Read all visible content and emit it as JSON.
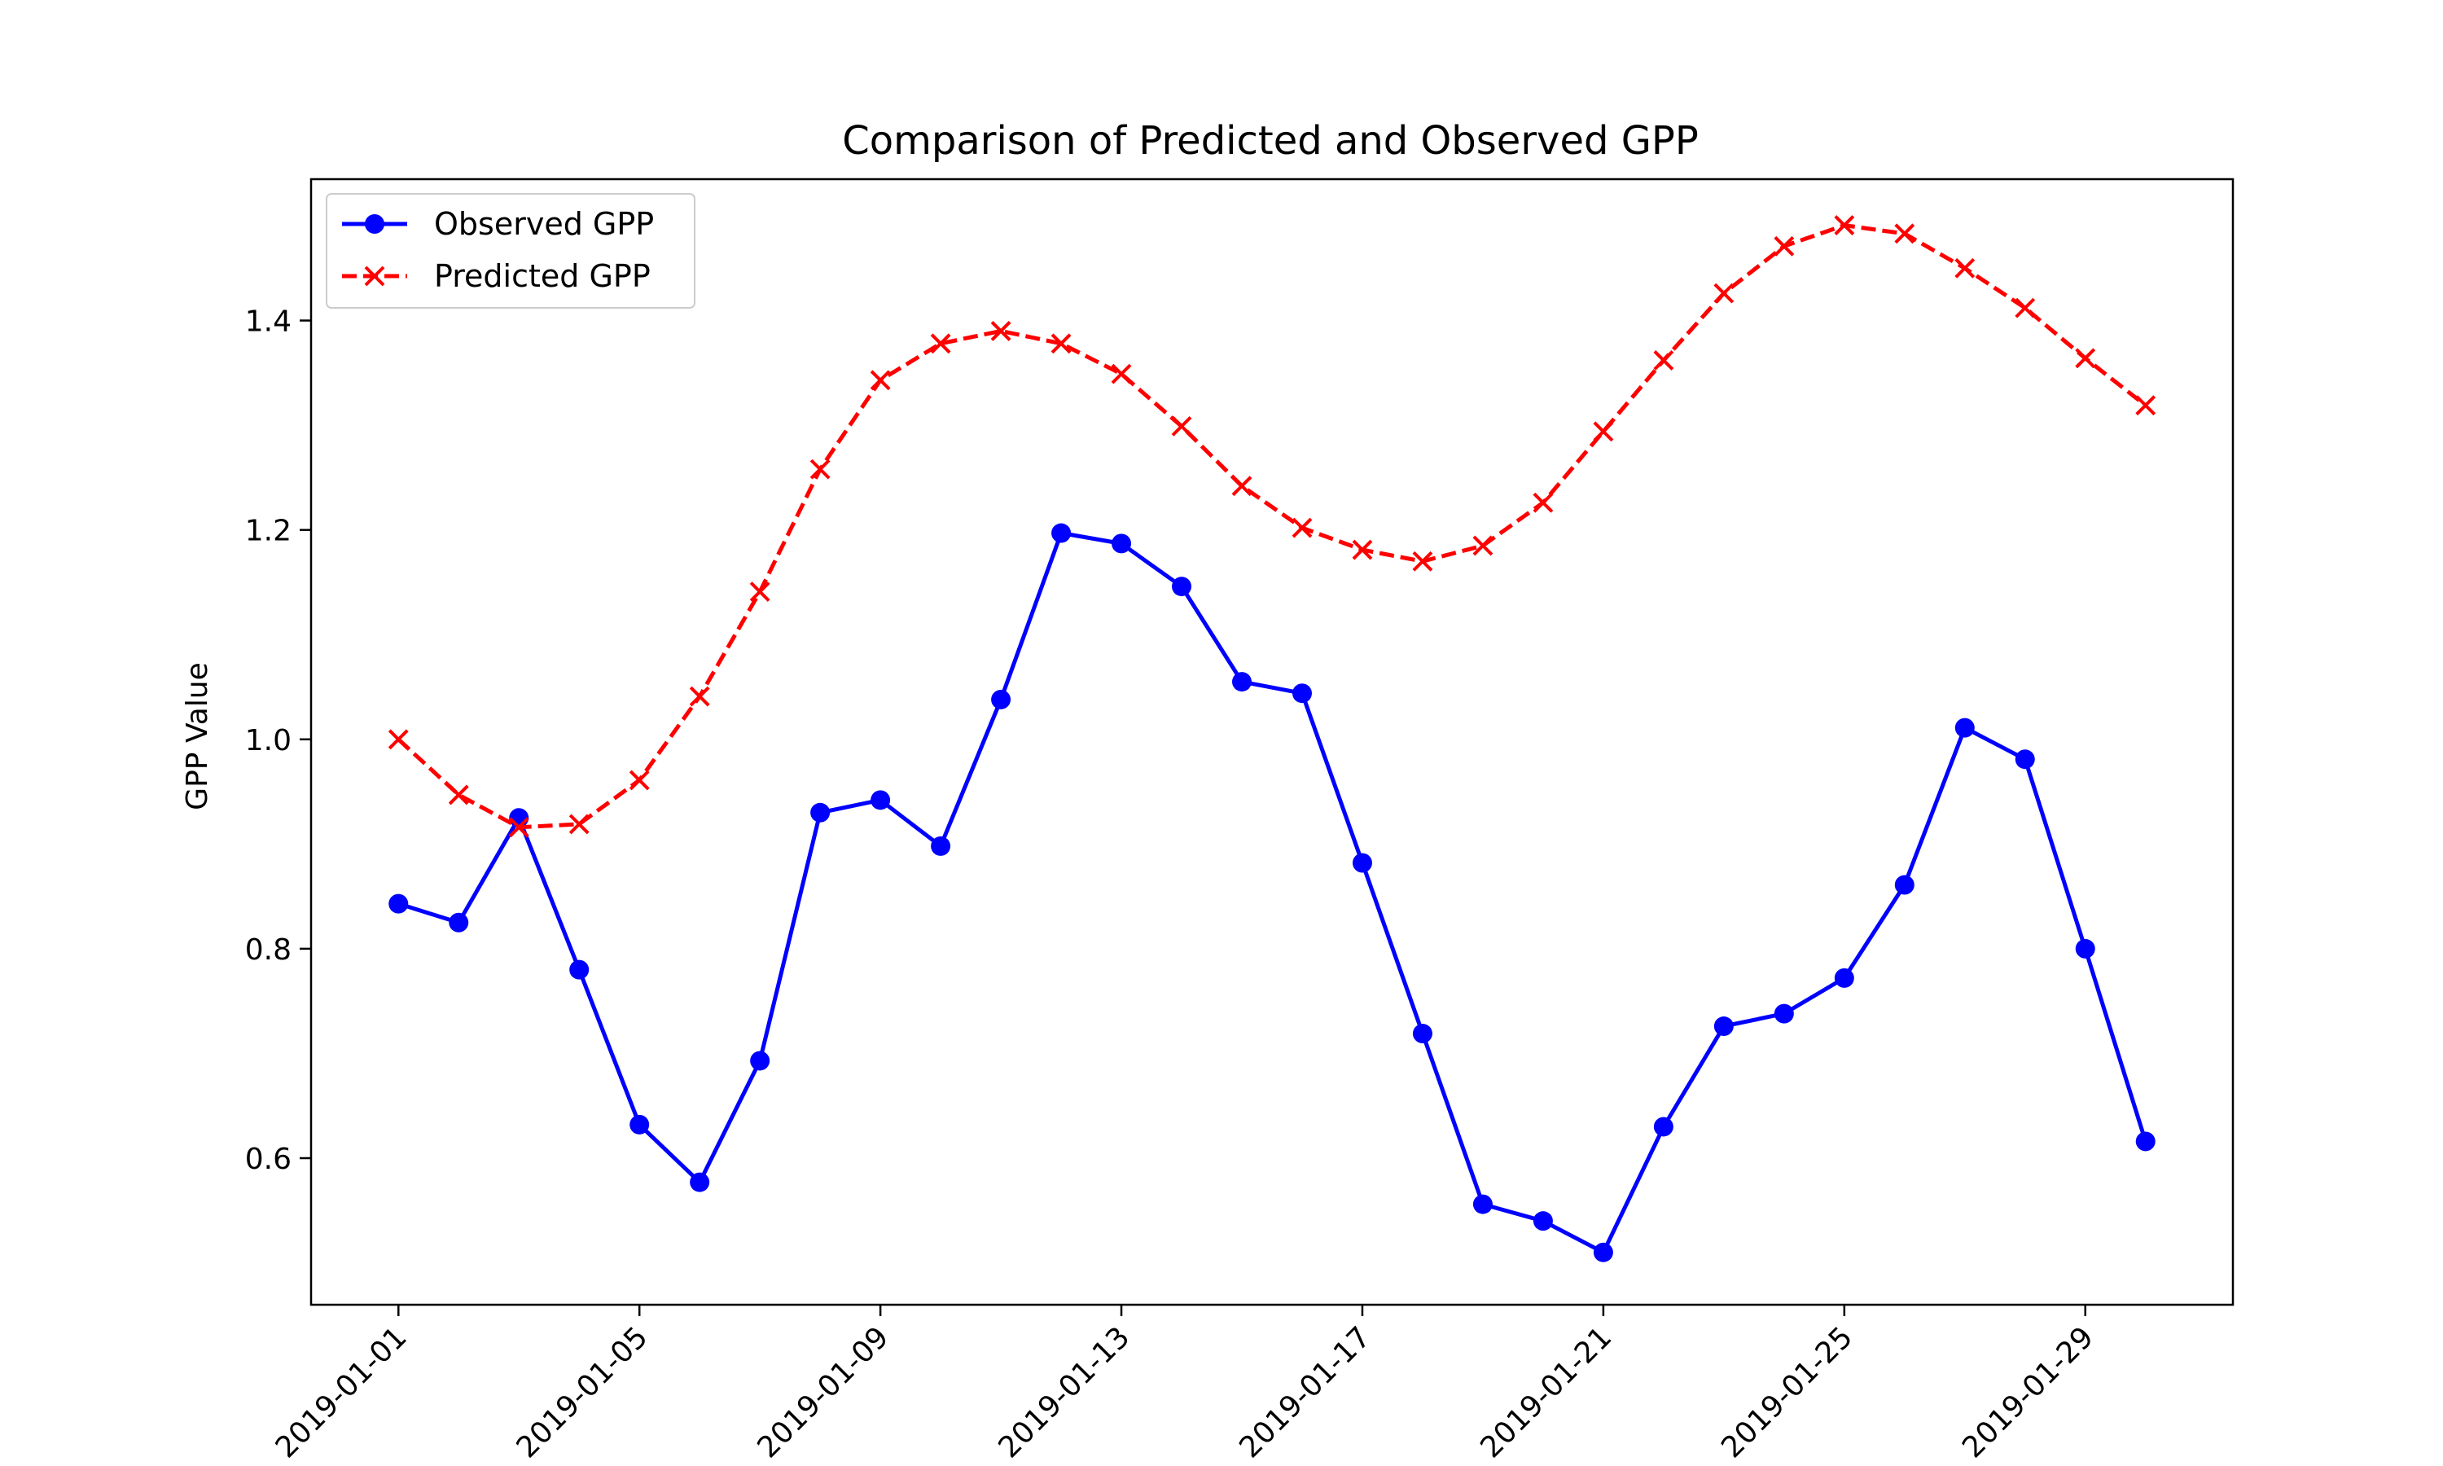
{
  "chart_data": {
    "type": "line",
    "title": "Comparison of Predicted and Observed GPP",
    "xlabel": "",
    "ylabel": "GPP Value",
    "x": [
      "2019-01-01",
      "2019-01-02",
      "2019-01-03",
      "2019-01-04",
      "2019-01-05",
      "2019-01-06",
      "2019-01-07",
      "2019-01-08",
      "2019-01-09",
      "2019-01-10",
      "2019-01-11",
      "2019-01-12",
      "2019-01-13",
      "2019-01-14",
      "2019-01-15",
      "2019-01-16",
      "2019-01-17",
      "2019-01-18",
      "2019-01-19",
      "2019-01-20",
      "2019-01-21",
      "2019-01-22",
      "2019-01-23",
      "2019-01-24",
      "2019-01-25",
      "2019-01-26",
      "2019-01-27",
      "2019-01-28",
      "2019-01-29",
      "2019-01-30"
    ],
    "x_ticks": [
      "2019-01-01",
      "2019-01-05",
      "2019-01-09",
      "2019-01-13",
      "2019-01-17",
      "2019-01-21",
      "2019-01-25",
      "2019-01-29"
    ],
    "y_ticks": [
      "0.6",
      "0.8",
      "1.0",
      "1.2",
      "1.4"
    ],
    "ylim": [
      0.46,
      1.535
    ],
    "xlim": [
      "2018-12-30.55",
      "2019-01-31.45"
    ],
    "grid": false,
    "legend_position": "upper-left",
    "series": [
      {
        "name": "Observed GPP",
        "color": "#0000ff",
        "line_style": "solid",
        "marker": "circle",
        "values": [
          0.843,
          0.825,
          0.925,
          0.78,
          0.632,
          0.577,
          0.693,
          0.93,
          0.942,
          0.898,
          1.038,
          1.197,
          1.187,
          1.146,
          1.055,
          1.044,
          0.882,
          0.719,
          0.556,
          0.54,
          0.51,
          0.63,
          0.726,
          0.738,
          0.772,
          0.861,
          1.011,
          0.981,
          0.8,
          0.616
        ]
      },
      {
        "name": "Predicted GPP",
        "color": "#ff0000",
        "line_style": "dashed",
        "marker": "x",
        "values": [
          1.0,
          0.947,
          0.916,
          0.919,
          0.961,
          1.041,
          1.141,
          1.258,
          1.343,
          1.378,
          1.39,
          1.378,
          1.349,
          1.299,
          1.242,
          1.202,
          1.181,
          1.17,
          1.185,
          1.226,
          1.294,
          1.362,
          1.426,
          1.471,
          1.491,
          1.483,
          1.45,
          1.412,
          1.364,
          1.319
        ]
      }
    ]
  }
}
